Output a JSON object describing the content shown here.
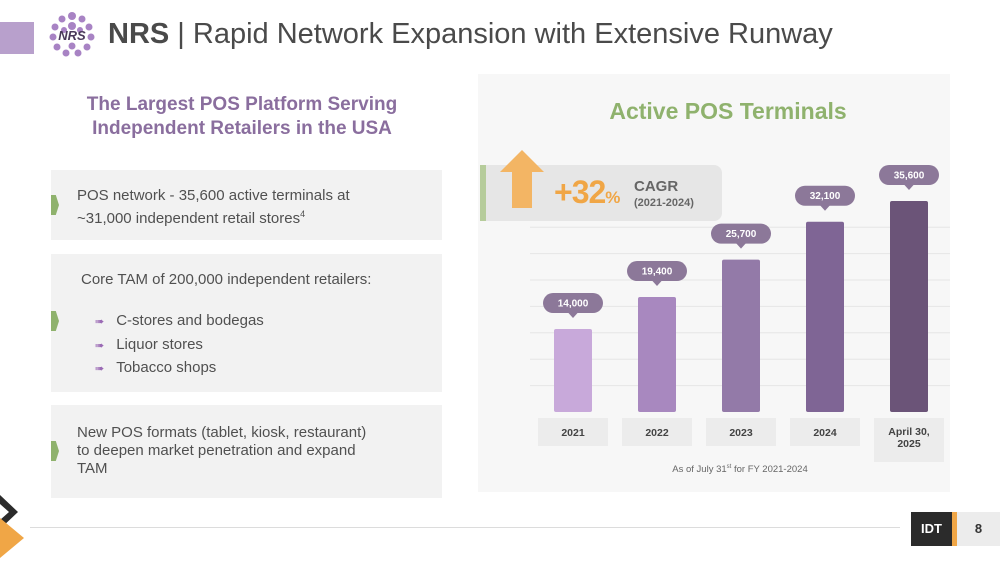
{
  "header": {
    "brand": "NRS",
    "separator": " | ",
    "title": "Rapid Network Expansion with Extensive Runway",
    "logo_text": "NRS"
  },
  "left": {
    "heading_line1": "The Largest POS Platform Serving",
    "heading_line2": "Independent Retailers in the USA",
    "card1": {
      "line1": "POS network - 35,600 active terminals at",
      "line2": "~31,000 independent retail stores",
      "sup": "4"
    },
    "card2": {
      "lead": "Core TAM of 200,000 independent retailers:",
      "bullet_glyph": "➠",
      "bullets": [
        "C-stores and bodegas",
        "Liquor stores",
        "Tobacco shops"
      ]
    },
    "card3": {
      "line1": "New POS formats (tablet, kiosk, restaurant)",
      "line2": "to deepen market penetration and expand",
      "line3": "TAM"
    }
  },
  "cagr": {
    "value": "+32",
    "unit": "%",
    "label": "CAGR",
    "range": "(2021-2024)"
  },
  "chart_data": {
    "type": "bar",
    "title": "Active POS Terminals",
    "categories": [
      "2021",
      "2022",
      "2023",
      "2024",
      "April 30, 2025"
    ],
    "category_lines": [
      [
        "2021"
      ],
      [
        "2022"
      ],
      [
        "2023"
      ],
      [
        "2024"
      ],
      [
        "April 30,",
        "2025"
      ]
    ],
    "values": [
      14000,
      19400,
      25700,
      32100,
      35600
    ],
    "value_labels": [
      "14,000",
      "19,400",
      "25,700",
      "32,100",
      "35,600"
    ],
    "xlabel": "",
    "ylabel": "",
    "ylim": [
      0,
      35600
    ],
    "grid": true,
    "colors": {
      "bars": [
        "#c8a9da",
        "#a888bf",
        "#937aa8",
        "#7f6595",
        "#6b5478"
      ],
      "bubble": "#8c7899"
    },
    "footnote_prefix": "As of  July 31",
    "footnote_sup": "st",
    "footnote_suffix": "  for FY 2021-2024"
  },
  "footer": {
    "company": "IDT",
    "page": "8"
  },
  "colors": {
    "accent_purple": "#8a6e9e",
    "accent_green": "#8fb26d",
    "accent_orange": "#f0a646",
    "dark": "#2b2b2b"
  }
}
